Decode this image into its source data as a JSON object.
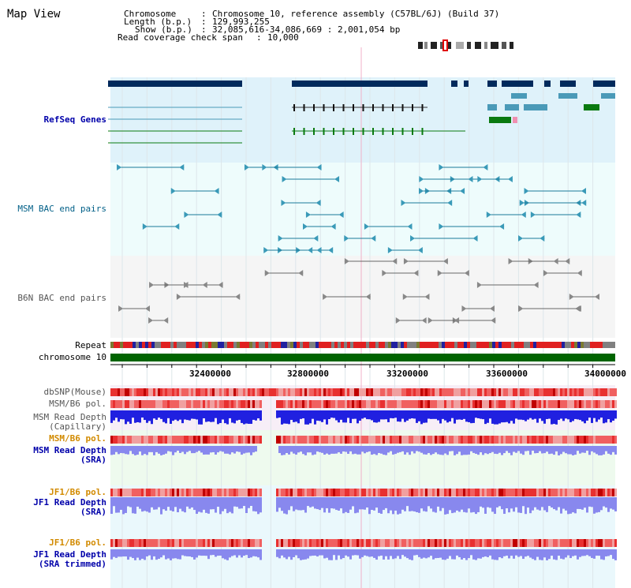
{
  "view_title": "Map View",
  "info": {
    "chromosome_key": "Chromosome",
    "chromosome_val": "Chromosome 10, reference assembly (C57BL/6J) (Build 37)",
    "length_key": "Length (b.p.)",
    "length_val": "129,993,255",
    "show_key": "Show (b.p.)",
    "show_val": "32,085,616-34,086,669 : 2,001,054 bp",
    "span_key": "Read coverage check span",
    "span_val": "10,000"
  },
  "tracks": {
    "refseq": "RefSeq Genes",
    "msm_bac": "MSM BAC end pairs",
    "b6n_bac": "B6N BAC end pairs",
    "repeat": "Repeat",
    "chromosome": "chromosome 10",
    "dbsnp": "dbSNP(Mouse)",
    "msm_pol": "MSM/B6 pol.",
    "msm_depth_cap_1": "MSM Read Depth",
    "msm_depth_cap_2": "(Capillary)",
    "msm_pol_sra": "MSM/B6 pol.",
    "msm_depth_sra_1": "MSM Read Depth",
    "msm_depth_sra_2": "(SRA)",
    "jf1_pol": "JF1/B6 pol.",
    "jf1_depth_1": "JF1 Read Depth",
    "jf1_depth_2": "(SRA)",
    "jf1_pol_trim": "JF1/B6 pol.",
    "jf1_trim_1": "JF1 Read Depth",
    "jf1_trim_2": "(SRA trimmed)"
  },
  "axis_ticks": [
    "32400000",
    "32800000",
    "33200000",
    "33600000",
    "34000000"
  ],
  "colors": {
    "refseq_bg": "#dff2fa",
    "bac_bg": "#eefcfc",
    "b6n_bg": "#f5f5f5",
    "navy": "#002a5c",
    "gene_teal": "#4a9ab8",
    "gene_green": "#0a7a10",
    "chrom_green": "#006400",
    "depth_blue": "#2020e0",
    "depth_light": "#8888ee"
  }
}
